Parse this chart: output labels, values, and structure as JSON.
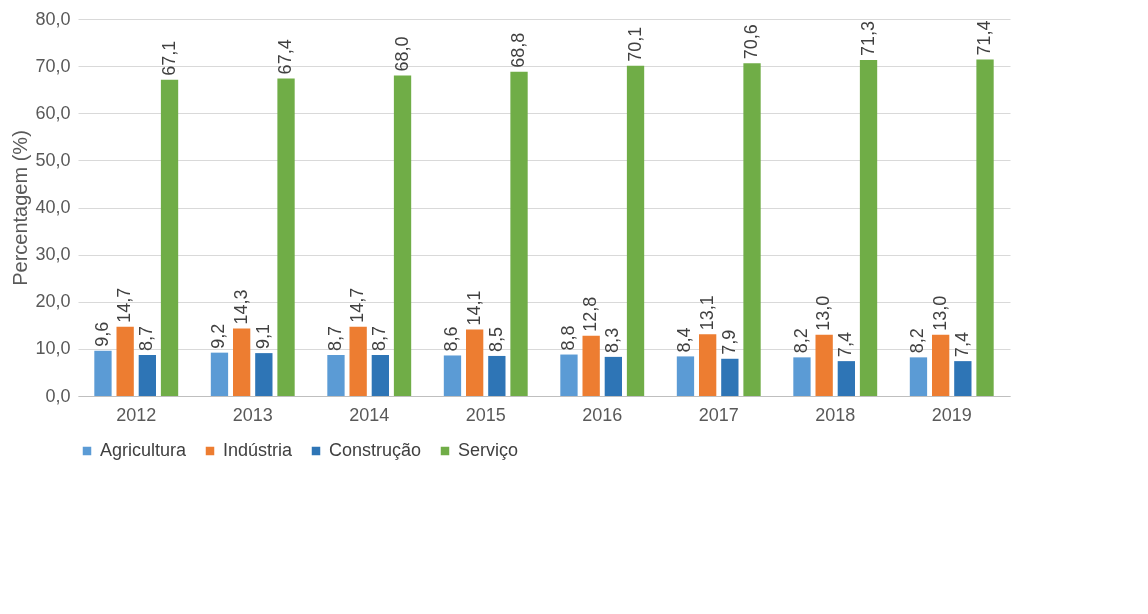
{
  "chart_data": {
    "type": "bar",
    "ylabel": "Percentagem (%)",
    "categories": [
      "2012",
      "2013",
      "2014",
      "2015",
      "2016",
      "2017",
      "2018",
      "2019"
    ],
    "series": [
      {
        "name": "Agricultura",
        "color": "#5b9bd5",
        "values": [
          9.6,
          9.2,
          8.7,
          8.6,
          8.8,
          8.4,
          8.2,
          8.2
        ],
        "value_labels": [
          "9,6",
          "9,2",
          "8,7",
          "8,6",
          "8,8",
          "8,4",
          "8,2",
          "8,2"
        ]
      },
      {
        "name": "Indústria",
        "color": "#ed7d31",
        "values": [
          14.7,
          14.3,
          14.7,
          14.1,
          12.8,
          13.1,
          13.0,
          13.0
        ],
        "value_labels": [
          "14,7",
          "14,3",
          "14,7",
          "14,1",
          "12,8",
          "13,1",
          "13,0",
          "13,0"
        ]
      },
      {
        "name": "Construção",
        "color": "#2e75b6",
        "values": [
          8.7,
          9.1,
          8.7,
          8.5,
          8.3,
          7.9,
          7.4,
          7.4
        ],
        "value_labels": [
          "8,7",
          "9,1",
          "8,7",
          "8,5",
          "8,3",
          "7,9",
          "7,4",
          "7,4"
        ]
      },
      {
        "name": "Serviço",
        "color": "#70ad47",
        "values": [
          67.1,
          67.4,
          68.0,
          68.8,
          70.1,
          70.6,
          71.3,
          71.4
        ],
        "value_labels": [
          "67,1",
          "67,4",
          "68,0",
          "68,8",
          "70,1",
          "70,6",
          "71,3",
          "71,4"
        ]
      }
    ],
    "ylim": [
      0,
      80
    ],
    "yticks": [
      {
        "value": 0,
        "label": "0,0"
      },
      {
        "value": 10,
        "label": "10,0"
      },
      {
        "value": 20,
        "label": "20,0"
      },
      {
        "value": 30,
        "label": "30,0"
      },
      {
        "value": 40,
        "label": "40,0"
      },
      {
        "value": 50,
        "label": "50,0"
      },
      {
        "value": 60,
        "label": "60,0"
      },
      {
        "value": 70,
        "label": "70,0"
      },
      {
        "value": 80,
        "label": "80,0"
      }
    ],
    "grid": "y",
    "legend": "bottom"
  }
}
